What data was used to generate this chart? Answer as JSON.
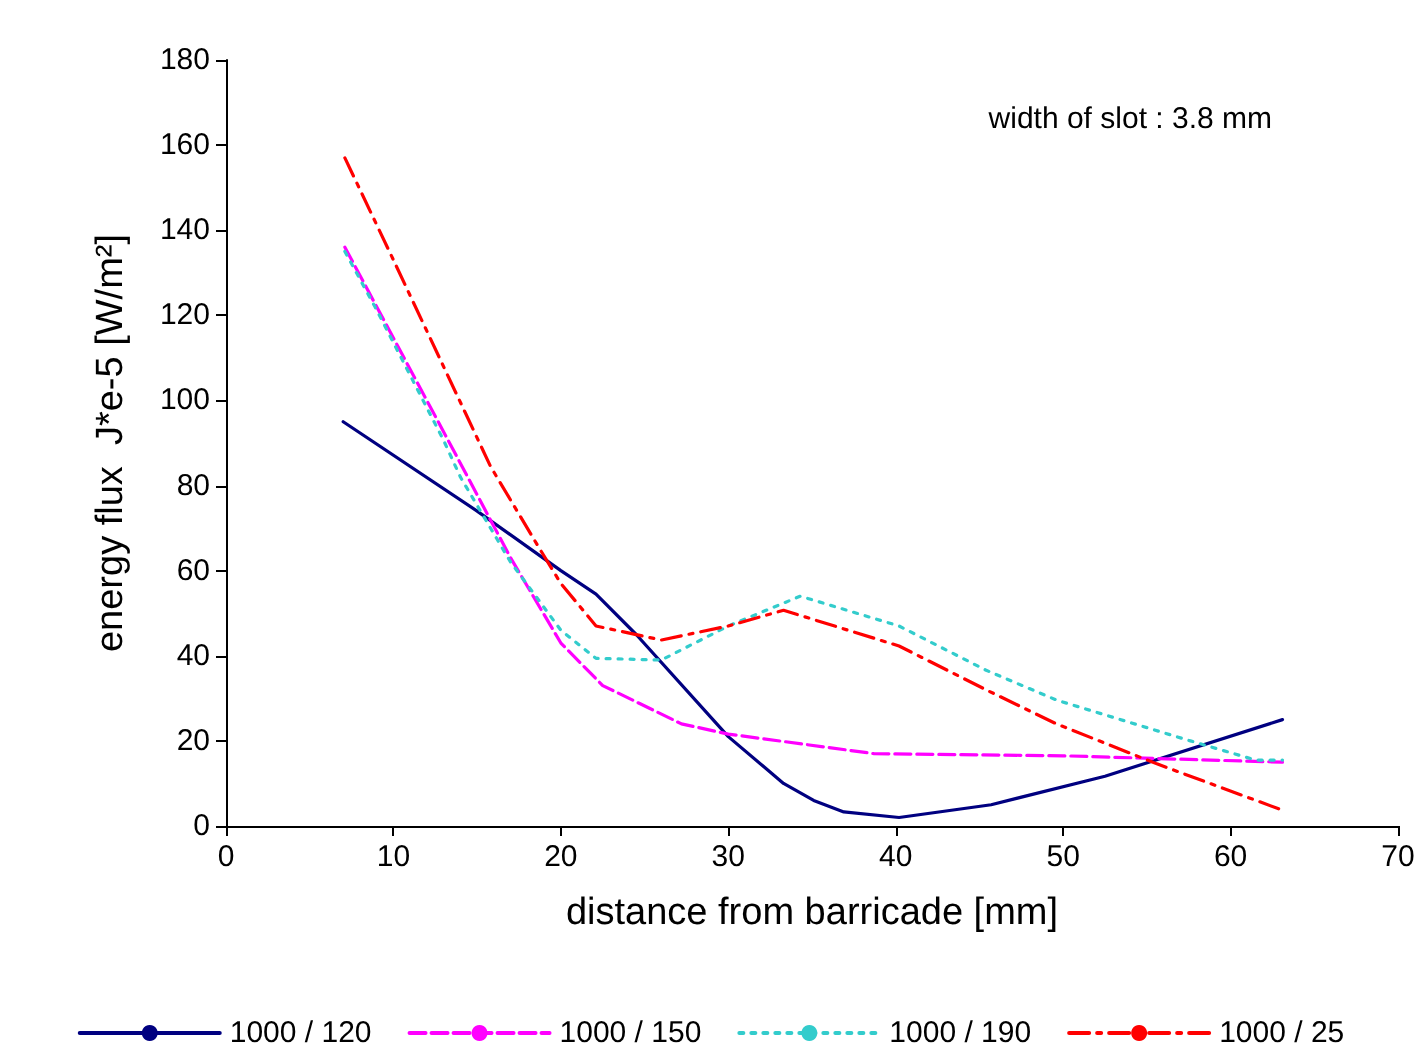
{
  "chart_data": {
    "type": "line",
    "xlabel": "distance from barricade [mm]",
    "ylabel": "energy flux  J*e-5 [W/m²]",
    "annotations": [
      "width of slot : 3.8 mm"
    ],
    "xlim": [
      0,
      70
    ],
    "xticks": [
      0,
      10,
      20,
      30,
      40,
      50,
      60,
      70
    ],
    "ylim": [
      0,
      180
    ],
    "yticks": [
      0,
      20,
      40,
      60,
      80,
      100,
      120,
      140,
      160,
      180
    ],
    "grid": false,
    "legend": "bottom",
    "marker": "none",
    "series": [
      {
        "name": "1000 / 120",
        "color": "#000080",
        "line_style": "solid",
        "x": [
          7,
          15,
          20,
          22.1,
          24.5,
          30,
          33.3,
          35.1,
          36.9,
          40.2,
          45.7,
          52.5,
          63.1
        ],
        "values": [
          95,
          74,
          60,
          54.5,
          45,
          21,
          10,
          6,
          3.3,
          2,
          5,
          11.7,
          25
        ]
      },
      {
        "name": "1000 / 150",
        "color": "#ff00ff",
        "line_style": "dashed",
        "x": [
          7.1,
          14.1,
          17,
          20,
          22.5,
          27.2,
          30,
          38.7,
          50,
          63.1
        ],
        "values": [
          136,
          84.5,
          63,
          43,
          33,
          24,
          21.6,
          17,
          16.5,
          15
        ]
      },
      {
        "name": "1000 / 190",
        "color": "#33cccc",
        "line_style": "dotted",
        "x": [
          7.1,
          8.9,
          13,
          14,
          17,
          20,
          22.1,
          26,
          30,
          34.3,
          40.2,
          45.4,
          49.6,
          57.6,
          61.5,
          63.1
        ],
        "values": [
          135,
          122,
          90.6,
          82,
          62,
          46,
          39.4,
          39,
          47,
          54,
          47,
          36.6,
          29.6,
          20,
          15.5,
          15.5
        ]
      },
      {
        "name": "1000 / 25",
        "color": "#ff0000",
        "line_style": "dashdot",
        "x": [
          7.1,
          10,
          15.8,
          18.6,
          20,
          22.1,
          26,
          30,
          33.3,
          40.2,
          45.4,
          49.6,
          55.6,
          62.9
        ],
        "values": [
          157,
          133,
          84.5,
          66,
          57,
          47,
          43.7,
          47,
          50.7,
          42.3,
          32,
          24,
          14.6,
          4
        ]
      }
    ]
  }
}
